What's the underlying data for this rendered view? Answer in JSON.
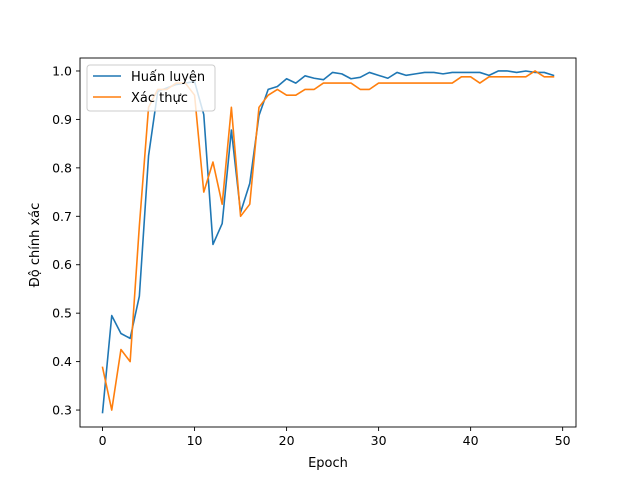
{
  "chart_data": {
    "type": "line",
    "xlabel": "Epoch",
    "ylabel": "Độ chính xác",
    "xlim": [
      -2.45,
      51.45
    ],
    "ylim": [
      0.265,
      1.0268
    ],
    "xticks": [
      0,
      10,
      20,
      30,
      40,
      50
    ],
    "yticks": [
      0.3,
      0.4,
      0.5,
      0.6,
      0.7,
      0.8,
      0.9,
      1.0
    ],
    "ytick_labels": [
      "0.3",
      "0.4",
      "0.5",
      "0.6",
      "0.7",
      "0.8",
      "0.9",
      "1.0"
    ],
    "grid": false,
    "legend_position": "top-left",
    "x": [
      0,
      1,
      2,
      3,
      4,
      5,
      6,
      7,
      8,
      9,
      10,
      11,
      12,
      13,
      14,
      15,
      16,
      17,
      18,
      19,
      20,
      21,
      22,
      23,
      24,
      25,
      26,
      27,
      28,
      29,
      30,
      31,
      32,
      33,
      34,
      35,
      36,
      37,
      38,
      39,
      40,
      41,
      42,
      43,
      44,
      45,
      46,
      47,
      48,
      49
    ],
    "series": [
      {
        "name": "Huấn luyện",
        "color": "#1f77b4",
        "values": [
          0.295,
          0.495,
          0.458,
          0.448,
          0.535,
          0.825,
          0.958,
          0.965,
          0.972,
          0.975,
          0.978,
          0.91,
          0.642,
          0.685,
          0.878,
          0.708,
          0.768,
          0.908,
          0.962,
          0.968,
          0.984,
          0.975,
          0.99,
          0.985,
          0.982,
          0.997,
          0.994,
          0.984,
          0.987,
          0.997,
          0.991,
          0.985,
          0.997,
          0.991,
          0.994,
          0.997,
          0.997,
          0.994,
          0.997,
          0.997,
          0.997,
          0.997,
          0.991,
          1.0,
          1.0,
          0.997,
          1.0,
          0.997,
          0.997,
          0.991
        ]
      },
      {
        "name": "Xác thực",
        "color": "#ff7f0e",
        "values": [
          0.388,
          0.3,
          0.425,
          0.4,
          0.68,
          0.925,
          0.962,
          0.962,
          0.975,
          0.975,
          0.95,
          0.75,
          0.812,
          0.725,
          0.925,
          0.7,
          0.725,
          0.925,
          0.95,
          0.962,
          0.95,
          0.95,
          0.962,
          0.962,
          0.975,
          0.975,
          0.975,
          0.975,
          0.962,
          0.962,
          0.975,
          0.975,
          0.975,
          0.975,
          0.975,
          0.975,
          0.975,
          0.975,
          0.975,
          0.988,
          0.988,
          0.975,
          0.988,
          0.988,
          0.988,
          0.988,
          0.988,
          1.0,
          0.988,
          0.988
        ]
      }
    ]
  }
}
